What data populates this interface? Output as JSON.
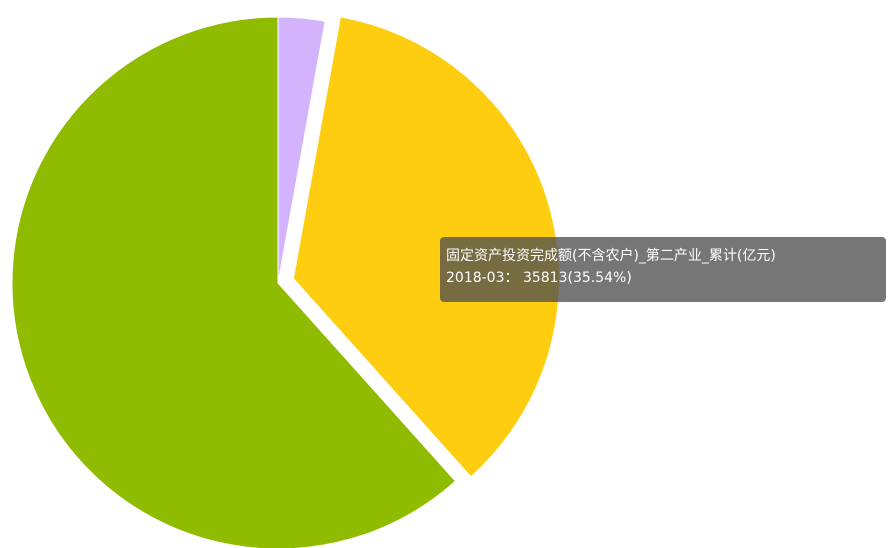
{
  "chart_data": {
    "type": "pie",
    "title": "",
    "slices": [
      {
        "name": "",
        "value": 2853,
        "color": "#d2b3fc"
      },
      {
        "name": "固定资产投资完成额(不含农户)_第二产业_累计(亿元)",
        "value": 35813,
        "color": "#fecd0f"
      },
      {
        "name": "",
        "value": 62094,
        "color": "#8fbb00"
      }
    ],
    "highlighted_index": 1,
    "start_angle_deg": 90,
    "direction": "clockwise"
  },
  "tooltip": {
    "series_name": "固定资产投资完成额(不含农户)_第二产业_累计(亿元)",
    "value_line": "2018-03： 35813(35.54%)"
  }
}
